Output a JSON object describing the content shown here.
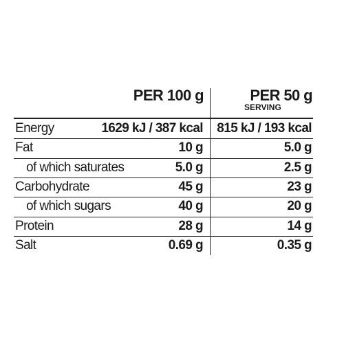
{
  "header": {
    "per_100": "PER 100 g",
    "per_serving": "PER 50 g",
    "serving_note": "SERVING"
  },
  "rows": [
    [
      "Energy",
      "1629 kJ / 387 kcal",
      "815 kJ / 193 kcal"
    ],
    [
      "Fat",
      "10 g",
      "5.0 g"
    ],
    [
      "of which saturates",
      "5.0 g",
      "2.5 g"
    ],
    [
      "Carbohydrate",
      "45 g",
      "23 g"
    ],
    [
      "of which sugars",
      "40 g",
      "20 g"
    ],
    [
      "Protein",
      "28 g",
      "14 g"
    ],
    [
      "Salt",
      "0.69 g",
      "0.35 g"
    ]
  ]
}
